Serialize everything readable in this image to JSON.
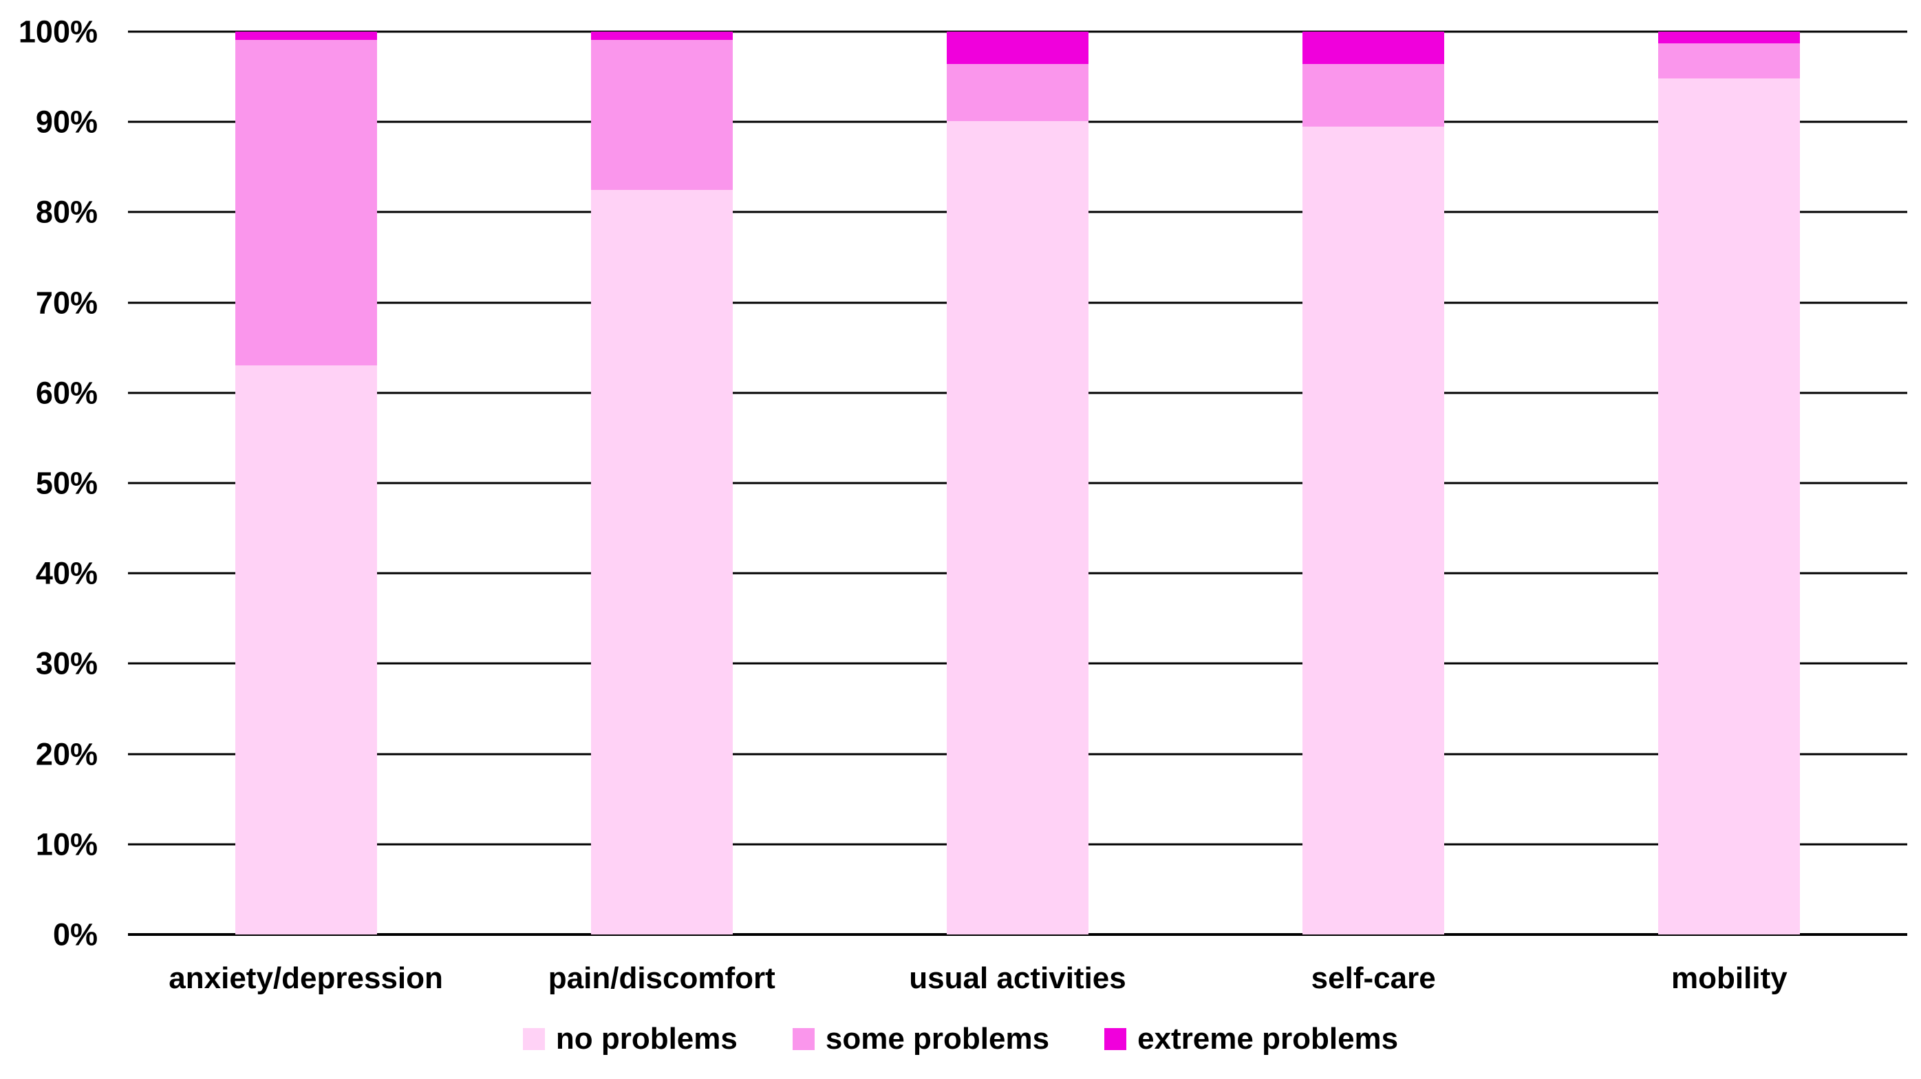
{
  "chart_data": {
    "type": "bar",
    "variant": "stacked-100-percent",
    "title": "",
    "xlabel": "",
    "ylabel": "",
    "categories": [
      "anxiety/depression",
      "pain/discomfort",
      "usual activities",
      "self-care",
      "mobility"
    ],
    "series": [
      {
        "name": "no problems",
        "color": "#FFD2F6",
        "values": [
          63.0,
          82.5,
          90.1,
          89.5,
          94.8
        ]
      },
      {
        "name": "some problems",
        "color": "#FA96EC",
        "values": [
          36.1,
          16.6,
          6.3,
          6.9,
          3.9
        ]
      },
      {
        "name": "extreme problems",
        "color": "#F000DC",
        "values": [
          0.9,
          0.9,
          3.6,
          3.6,
          1.3
        ]
      }
    ],
    "ylim": [
      0,
      100
    ],
    "yticks": [
      "0%",
      "10%",
      "20%",
      "30%",
      "40%",
      "50%",
      "60%",
      "70%",
      "80%",
      "90%",
      "100%"
    ],
    "grid": "horizontal",
    "gridline_color": "#000000",
    "legend_position": "bottom",
    "background_color": "#FFFFFF",
    "text_color": "#000000"
  }
}
